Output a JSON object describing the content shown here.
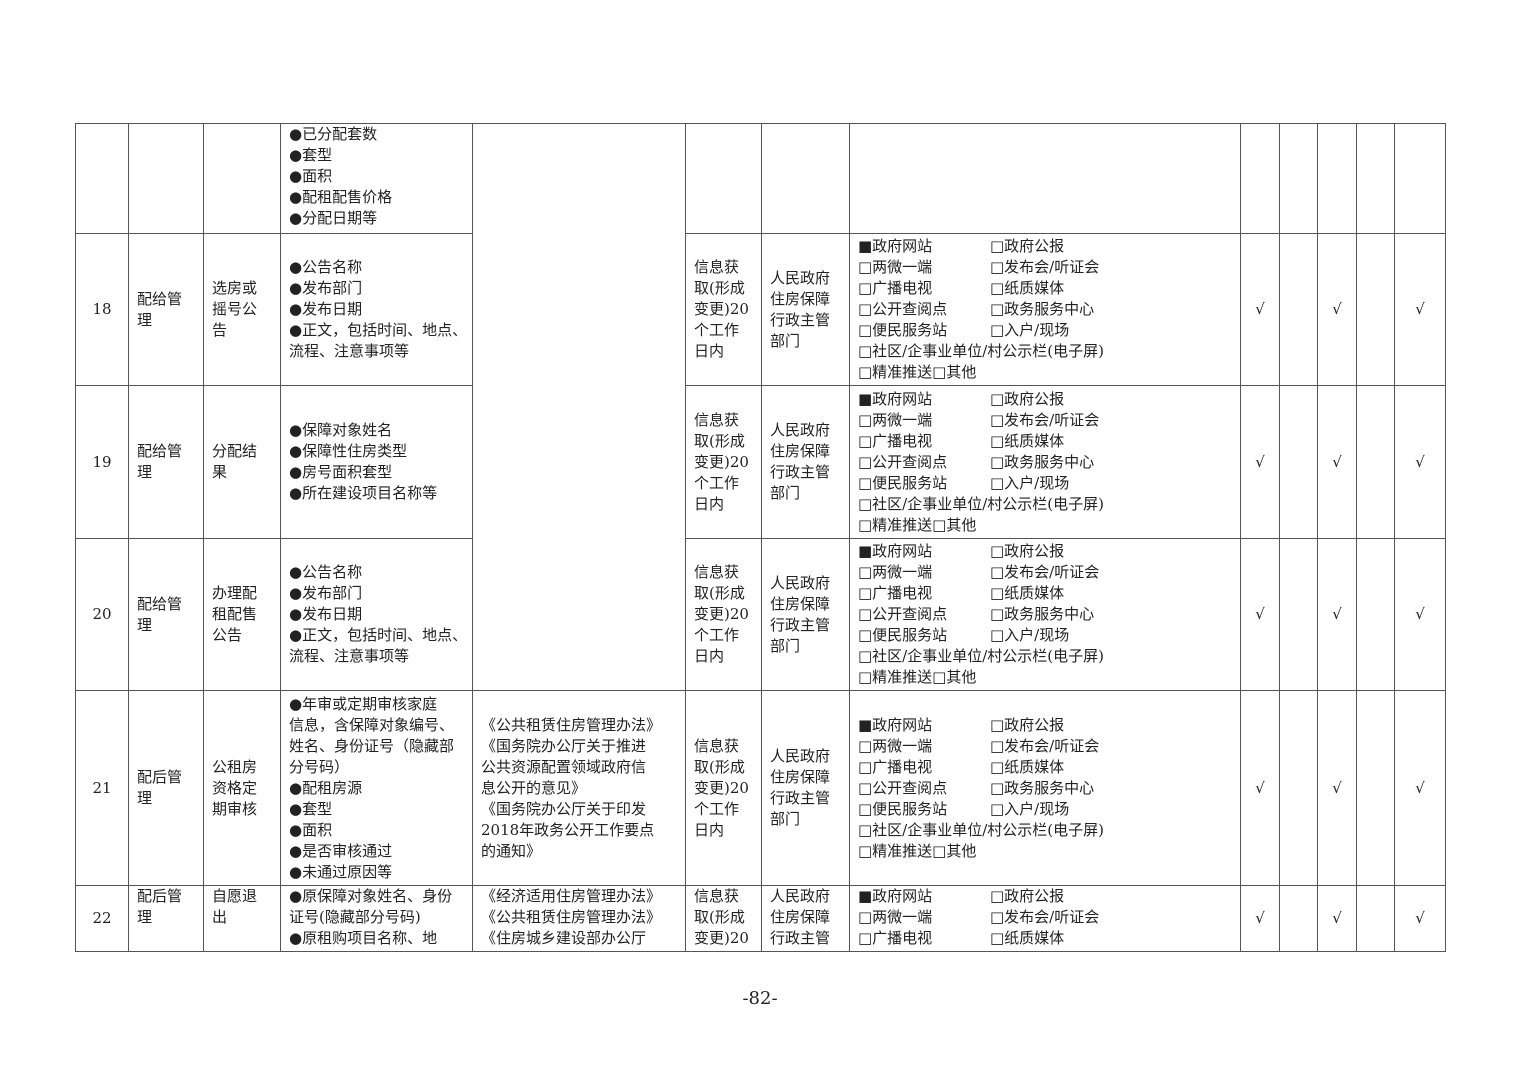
{
  "table": {
    "rows": [
      {
        "content": [
          "●已分配套数",
          "●套型",
          "●面积",
          "●配租配售价格",
          "●分配日期等"
        ]
      },
      {
        "no": "18",
        "category": [
          "配给管",
          "理"
        ],
        "item": [
          "选房或",
          "摇号公",
          "告"
        ],
        "content": [
          "●公告名称",
          "●发布部门",
          "●发布日期",
          "●正文，包括时间、地点、",
          "流程、注意事项等"
        ],
        "timing": [
          "信息获",
          "取(形成",
          "变更)20",
          "个工作",
          "日内"
        ],
        "subject": [
          "人民政府",
          "住房保障",
          "行政主管",
          "部门"
        ],
        "channels": [
          [
            "■政府网站",
            "□政府公报"
          ],
          [
            "□两微一端",
            "□发布会/听证会"
          ],
          [
            "□广播电视",
            "□纸质媒体"
          ],
          [
            "□公开查阅点",
            "□政务服务中心"
          ],
          [
            "□便民服务站",
            "□入户/现场"
          ],
          [
            "□社区/企事业单位/村公示栏(电子屏)"
          ],
          [
            "□精准推送□其他"
          ]
        ],
        "checks": [
          "√",
          null,
          "√",
          null,
          "√"
        ]
      },
      {
        "no": "19",
        "category": [
          "配给管",
          "理"
        ],
        "item": [
          "分配结",
          "果"
        ],
        "content": [
          "●保障对象姓名",
          "●保障性住房类型",
          "●房号面积套型",
          "●所在建设项目名称等"
        ],
        "timing": [
          "信息获",
          "取(形成",
          "变更)20",
          "个工作",
          "日内"
        ],
        "subject": [
          "人民政府",
          "住房保障",
          "行政主管",
          "部门"
        ],
        "channels": [
          [
            "■政府网站",
            "□政府公报"
          ],
          [
            "□两微一端",
            "□发布会/听证会"
          ],
          [
            "□广播电视",
            "□纸质媒体"
          ],
          [
            "□公开查阅点",
            "□政务服务中心"
          ],
          [
            "□便民服务站",
            "□入户/现场"
          ],
          [
            "□社区/企事业单位/村公示栏(电子屏)"
          ],
          [
            "□精准推送□其他"
          ]
        ],
        "checks": [
          "√",
          null,
          "√",
          null,
          "√"
        ]
      },
      {
        "no": "20",
        "category": [
          "配给管",
          "理"
        ],
        "item": [
          "办理配",
          "租配售",
          "公告"
        ],
        "content": [
          "●公告名称",
          "●发布部门",
          "●发布日期",
          "●正文，包括时间、地点、",
          "流程、注意事项等"
        ],
        "timing": [
          "信息获",
          "取(形成",
          "变更)20",
          "个工作",
          "日内"
        ],
        "subject": [
          "人民政府",
          "住房保障",
          "行政主管",
          "部门"
        ],
        "channels": [
          [
            "■政府网站",
            "□政府公报"
          ],
          [
            "□两微一端",
            "□发布会/听证会"
          ],
          [
            "□广播电视",
            "□纸质媒体"
          ],
          [
            "□公开查阅点",
            "□政务服务中心"
          ],
          [
            "□便民服务站",
            "□入户/现场"
          ],
          [
            "□社区/企事业单位/村公示栏(电子屏)"
          ],
          [
            "□精准推送□其他"
          ]
        ],
        "checks": [
          "√",
          null,
          "√",
          null,
          "√"
        ]
      },
      {
        "no": "21",
        "category": [
          "配后管",
          "理"
        ],
        "item": [
          "公租房",
          "资格定",
          "期审核"
        ],
        "content": [
          "●年审或定期审核家庭",
          "信息，含保障对象编号、",
          "姓名、身份证号（隐藏部",
          "分号码）",
          "●配租房源",
          "●套型",
          "●面积",
          "●是否审核通过",
          "●未通过原因等"
        ],
        "basis": [
          "《公共租赁住房管理办法》",
          "《国务院办公厅关于推进",
          "公共资源配置领域政府信",
          "息公开的意见》",
          "《国务院办公厅关于印发",
          "2018年政务公开工作要点",
          "的通知》"
        ],
        "timing": [
          "信息获",
          "取(形成",
          "变更)20",
          "个工作",
          "日内"
        ],
        "subject": [
          "人民政府",
          "住房保障",
          "行政主管",
          "部门"
        ],
        "channels": [
          [
            "■政府网站",
            "□政府公报"
          ],
          [
            "□两微一端",
            "□发布会/听证会"
          ],
          [
            "□广播电视",
            "□纸质媒体"
          ],
          [
            "□公开查阅点",
            "□政务服务中心"
          ],
          [
            "□便民服务站",
            "□入户/现场"
          ],
          [
            "□社区/企事业单位/村公示栏(电子屏)"
          ],
          [
            "□精准推送□其他"
          ]
        ],
        "checks": [
          "√",
          null,
          "√",
          null,
          "√"
        ]
      },
      {
        "no": "22",
        "category": [
          "配后管",
          "理"
        ],
        "item": [
          "自愿退",
          "出"
        ],
        "content": [
          "●原保障对象姓名、身份",
          "证号(隐藏部分号码)",
          "●原租购项目名称、地"
        ],
        "basis": [
          "《经济适用住房管理办法》",
          "《公共租赁住房管理办法》",
          "《住房城乡建设部办公厅"
        ],
        "timing": [
          "信息获",
          "取(形成",
          "变更)20"
        ],
        "subject": [
          "人民政府",
          "住房保障",
          "行政主管"
        ],
        "channels": [
          [
            "■政府网站",
            "□政府公报"
          ],
          [
            "□两微一端",
            "□发布会/听证会"
          ],
          [
            "□广播电视",
            "□纸质媒体"
          ]
        ],
        "checks": [
          "√",
          null,
          "√",
          null,
          "√"
        ]
      }
    ]
  },
  "footer": {
    "page": "-82-"
  }
}
